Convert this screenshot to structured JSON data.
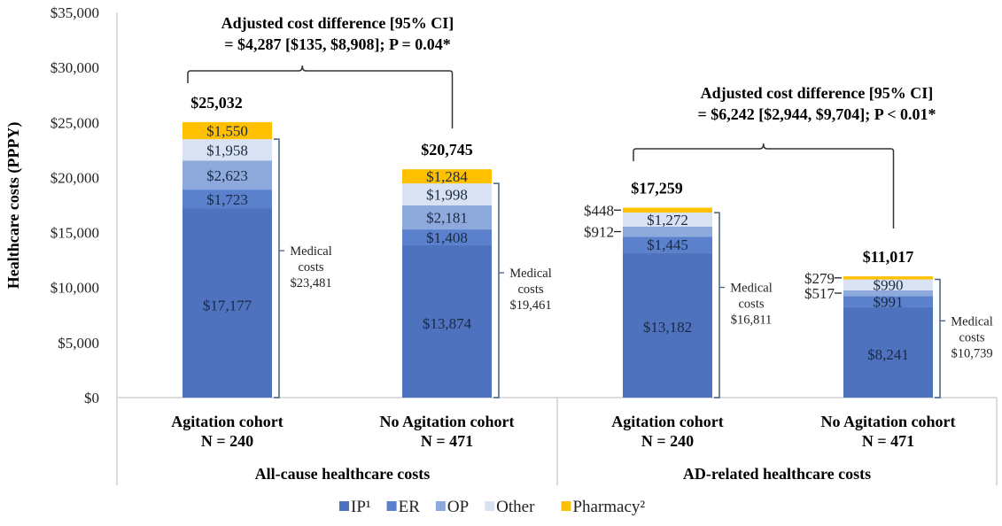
{
  "chart_data": {
    "type": "bar",
    "stacked": true,
    "title": "",
    "ylabel": "Healthcare costs (PPPY)",
    "xlabel": "",
    "ylim": [
      0,
      35000
    ],
    "yticks": [
      0,
      5000,
      10000,
      15000,
      20000,
      25000,
      30000,
      35000
    ],
    "ytick_labels": [
      "$0",
      "$5,000",
      "$10,000",
      "$15,000",
      "$20,000",
      "$25,000",
      "$30,000",
      "$35,000"
    ],
    "grid": false,
    "legend_position": "bottom-center",
    "series": [
      {
        "name": "IP¹",
        "color": "#4f72be"
      },
      {
        "name": "ER",
        "color": "#5b81cc"
      },
      {
        "name": "OP",
        "color": "#8eaadc"
      },
      {
        "name": "Other",
        "color": "#d9e2f3"
      },
      {
        "name": "Pharmacy²",
        "color": "#ffc000"
      }
    ],
    "groups": [
      {
        "label": "All-cause healthcare costs",
        "annotation": [
          "Adjusted cost difference [95% CI]",
          "= $4,287 [$135, $8,908]; P = 0.04*"
        ],
        "bars": [
          {
            "category": "Agitation cohort",
            "n_label": "N = 240",
            "total_label": "$25,032",
            "values": [
              17177,
              1723,
              2623,
              1958,
              1550
            ],
            "labels": [
              "$17,177",
              "$1,723",
              "$2,623",
              "$1,958",
              "$1,550"
            ],
            "outside_labels": [],
            "medical_label": [
              "Medical",
              "costs",
              "$23,481"
            ]
          },
          {
            "category": "No Agitation cohort",
            "n_label": "N = 471",
            "total_label": "$20,745",
            "values": [
              13874,
              1408,
              2181,
              1998,
              1284
            ],
            "labels": [
              "$13,874",
              "$1,408",
              "$2,181",
              "$1,998",
              "$1,284"
            ],
            "outside_labels": [],
            "medical_label": [
              "Medical",
              "costs",
              "$19,461"
            ]
          }
        ]
      },
      {
        "label": "AD-related healthcare costs",
        "annotation": [
          "Adjusted cost difference [95% CI]",
          "= $6,242 [$2,944, $9,704]; P < 0.01*"
        ],
        "bars": [
          {
            "category": "Agitation cohort",
            "n_label": "N = 240",
            "total_label": "$17,259",
            "values": [
              13182,
              1445,
              912,
              1272,
              448
            ],
            "labels": [
              "$13,182",
              "$1,445",
              "",
              "$1,272",
              ""
            ],
            "outside_labels": [
              {
                "series": 4,
                "text": "$448"
              },
              {
                "series": 2,
                "text": "$912"
              }
            ],
            "medical_label": [
              "Medical",
              "costs",
              "$16,811"
            ]
          },
          {
            "category": "No Agitation cohort",
            "n_label": "N = 471",
            "total_label": "$11,017",
            "values": [
              8241,
              991,
              517,
              990,
              279
            ],
            "labels": [
              "$8,241",
              "$991",
              "",
              "$990",
              ""
            ],
            "outside_labels": [
              {
                "series": 4,
                "text": "$279"
              },
              {
                "series": 2,
                "text": "$517"
              }
            ],
            "medical_label": [
              "Medical",
              "costs",
              "$10,739"
            ]
          }
        ]
      }
    ]
  }
}
